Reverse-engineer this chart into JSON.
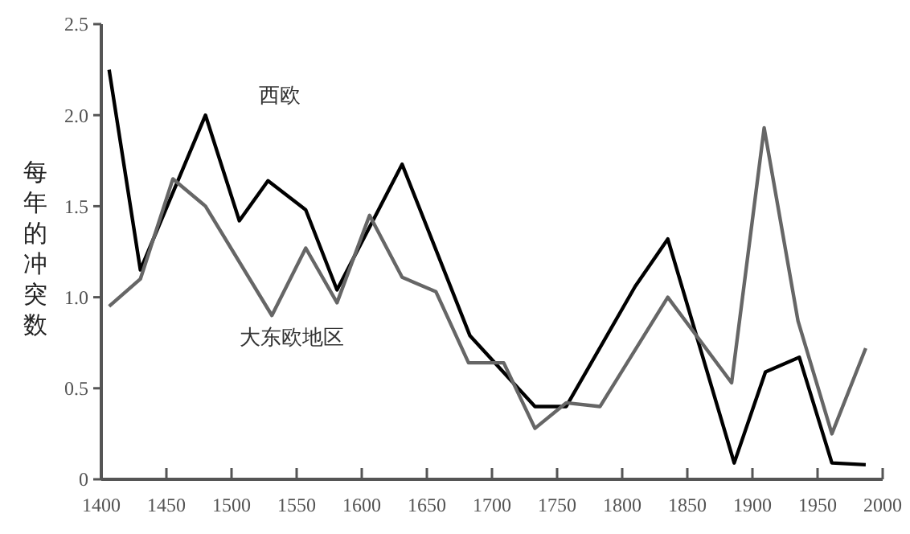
{
  "chart_data": {
    "type": "line",
    "ylabel": "每年的冲突数",
    "xlim": [
      1400,
      2000
    ],
    "xticks": [
      1400,
      1450,
      1500,
      1550,
      1600,
      1650,
      1700,
      1750,
      1800,
      1850,
      1900,
      1950,
      2000
    ],
    "ylim": [
      0,
      2.5
    ],
    "yticks": [
      0,
      {
        "value": 0.5,
        "label": "0.5"
      },
      {
        "value": 1,
        "label": "1.0"
      },
      {
        "value": 1.5,
        "label": "1.5"
      },
      {
        "value": 2,
        "label": "2.0"
      },
      {
        "value": 2.5,
        "label": "2.5"
      }
    ],
    "grid": false,
    "marker": "none",
    "line_style": "solid",
    "series": [
      {
        "name": "西欧",
        "color": "#000000",
        "x": [
          1406,
          1430,
          1480,
          1506,
          1528,
          1557,
          1581,
          1631,
          1683,
          1733,
          1757,
          1810,
          1835,
          1886,
          1910,
          1936,
          1961,
          1987
        ],
        "values": [
          2.25,
          1.15,
          2.0,
          1.42,
          1.64,
          1.48,
          1.04,
          1.73,
          0.79,
          0.4,
          0.4,
          1.06,
          1.32,
          0.09,
          0.59,
          0.67,
          0.09,
          0.08
        ]
      },
      {
        "name": "大东欧地区",
        "color": "#666666",
        "x": [
          1406,
          1430,
          1455,
          1480,
          1531,
          1557,
          1581,
          1606,
          1631,
          1657,
          1682,
          1709,
          1733,
          1757,
          1783,
          1835,
          1884,
          1909,
          1935,
          1961,
          1987
        ],
        "values": [
          0.95,
          1.1,
          1.65,
          1.5,
          0.9,
          1.27,
          0.97,
          1.45,
          1.11,
          1.03,
          0.64,
          0.64,
          0.28,
          0.42,
          0.4,
          1.0,
          0.53,
          1.93,
          0.87,
          0.25,
          0.72
        ]
      }
    ]
  }
}
